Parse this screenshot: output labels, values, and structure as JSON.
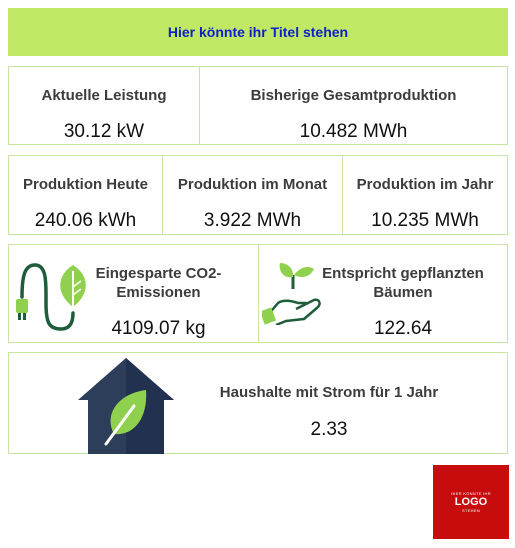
{
  "header": {
    "title": "Hier könnte ihr Titel stehen"
  },
  "row1": [
    {
      "label": "Aktuelle Leistung",
      "value": "30.12 kW"
    },
    {
      "label": "Bisherige Gesamtproduktion",
      "value": "10.482 MWh"
    }
  ],
  "row2": [
    {
      "label": "Produktion Heute",
      "value": "240.06 kWh"
    },
    {
      "label": "Produktion im Monat",
      "value": "3.922 MWh"
    },
    {
      "label": "Produktion im Jahr",
      "value": "10.235 MWh"
    }
  ],
  "row3": [
    {
      "label_line1": "Eingesparte CO2-",
      "label_line2": "Emissionen",
      "value": "4109.07 kg",
      "icon": "plug-leaf-icon"
    },
    {
      "label_line1": "Entspricht gepflanzten",
      "label_line2": "Bäumen",
      "value": "122.64",
      "icon": "hand-plant-icon"
    }
  ],
  "row4": {
    "label": "Haushalte mit Strom für 1 Jahr",
    "value": "2.33",
    "icon": "eco-house-icon"
  },
  "logo": {
    "small_text": "HIER KÖNNTE IHR",
    "main_text": "LOGO",
    "sub_text": "STEHEN"
  },
  "colors": {
    "title_bg": "#c1e865",
    "title_text": "#1020c8",
    "border": "#c8e5a3",
    "logo_bg": "#c60c0c"
  }
}
